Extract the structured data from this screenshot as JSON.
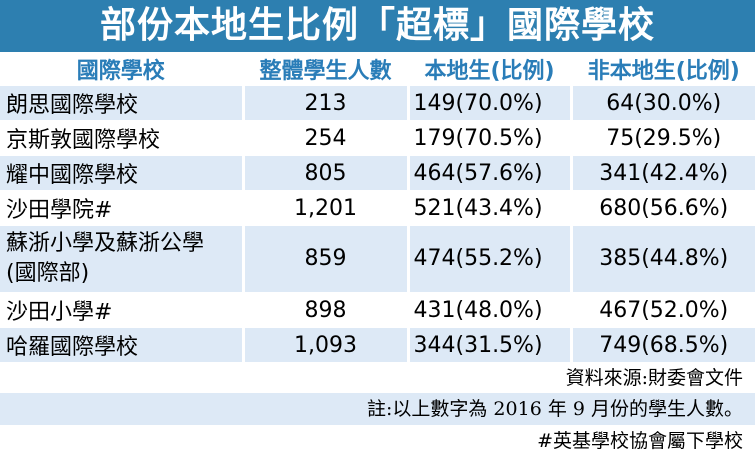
{
  "title": "部份本地生比例「超標」國際學校",
  "headers": [
    "國際學校",
    "整體學生人數",
    "本地生(比例)",
    "非本地生(比例)"
  ],
  "rows": [
    {
      "school": "朗思國際學校",
      "school2": "",
      "total": "213",
      "local": "149(70.0%)",
      "nonlocal": "64(30.0%)"
    },
    {
      "school": "京斯敦國際學校",
      "school2": "",
      "total": "254",
      "local": "179(70.5%)",
      "nonlocal": "75(29.5%)"
    },
    {
      "school": "耀中國際學校",
      "school2": "",
      "total": "805",
      "local": "464(57.6%)",
      "nonlocal": "341(42.4%)"
    },
    {
      "school": "沙田學院#",
      "school2": "",
      "total": "1,201",
      "local": "521(43.4%)",
      "nonlocal": "680(56.6%)"
    },
    {
      "school": "蘇浙小學及蘇浙公學",
      "school2": "(國際部)",
      "total": "859",
      "local": "474(55.2%)",
      "nonlocal": "385(44.8%)"
    },
    {
      "school": "沙田小學#",
      "school2": "",
      "total": "898",
      "local": "431(48.0%)",
      "nonlocal": "467(52.0%)"
    },
    {
      "school": "哈羅國際學校",
      "school2": "",
      "total": "1,093",
      "local": "344(31.5%)",
      "nonlocal": "749(68.5%)"
    }
  ],
  "notes": {
    "source": "資料來源:財委會文件",
    "remark": "註:以上數字為 2016 年 9 月份的學生人數。",
    "footnote": "#英基學校協會屬下學校"
  },
  "colors": {
    "title_bg": "#2d7fb0",
    "header_text": "#2a7db8",
    "band": "#dde9f6"
  }
}
